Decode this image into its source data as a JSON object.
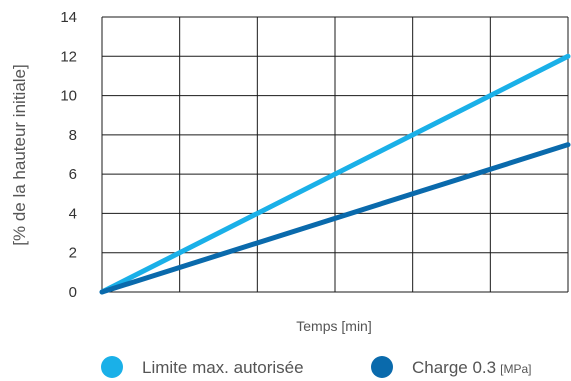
{
  "chart_data": {
    "type": "line",
    "title": "",
    "ylabel": "[% de la hauteur initiale]",
    "xlabel": "Temps [min]",
    "ylim": [
      0,
      14
    ],
    "yticks": [
      "0",
      "2",
      "4",
      "6",
      "8",
      "10",
      "12",
      "14"
    ],
    "ytick_values": [
      0,
      2,
      4,
      6,
      8,
      10,
      12,
      14
    ],
    "xlim": [
      0,
      6
    ],
    "x_gridlines": [
      0,
      1,
      2,
      3,
      4,
      5,
      6
    ],
    "grid": true,
    "legend_position": "bottom",
    "series": [
      {
        "name": "Limite max. autorisée",
        "color": "#1ab0e8",
        "x": [
          0,
          6
        ],
        "y": [
          0,
          12
        ]
      },
      {
        "name": "Charge 0.3",
        "name_unit": "[MPa]",
        "color": "#0a6aac",
        "x": [
          0,
          6
        ],
        "y": [
          0,
          7.5
        ]
      }
    ]
  }
}
